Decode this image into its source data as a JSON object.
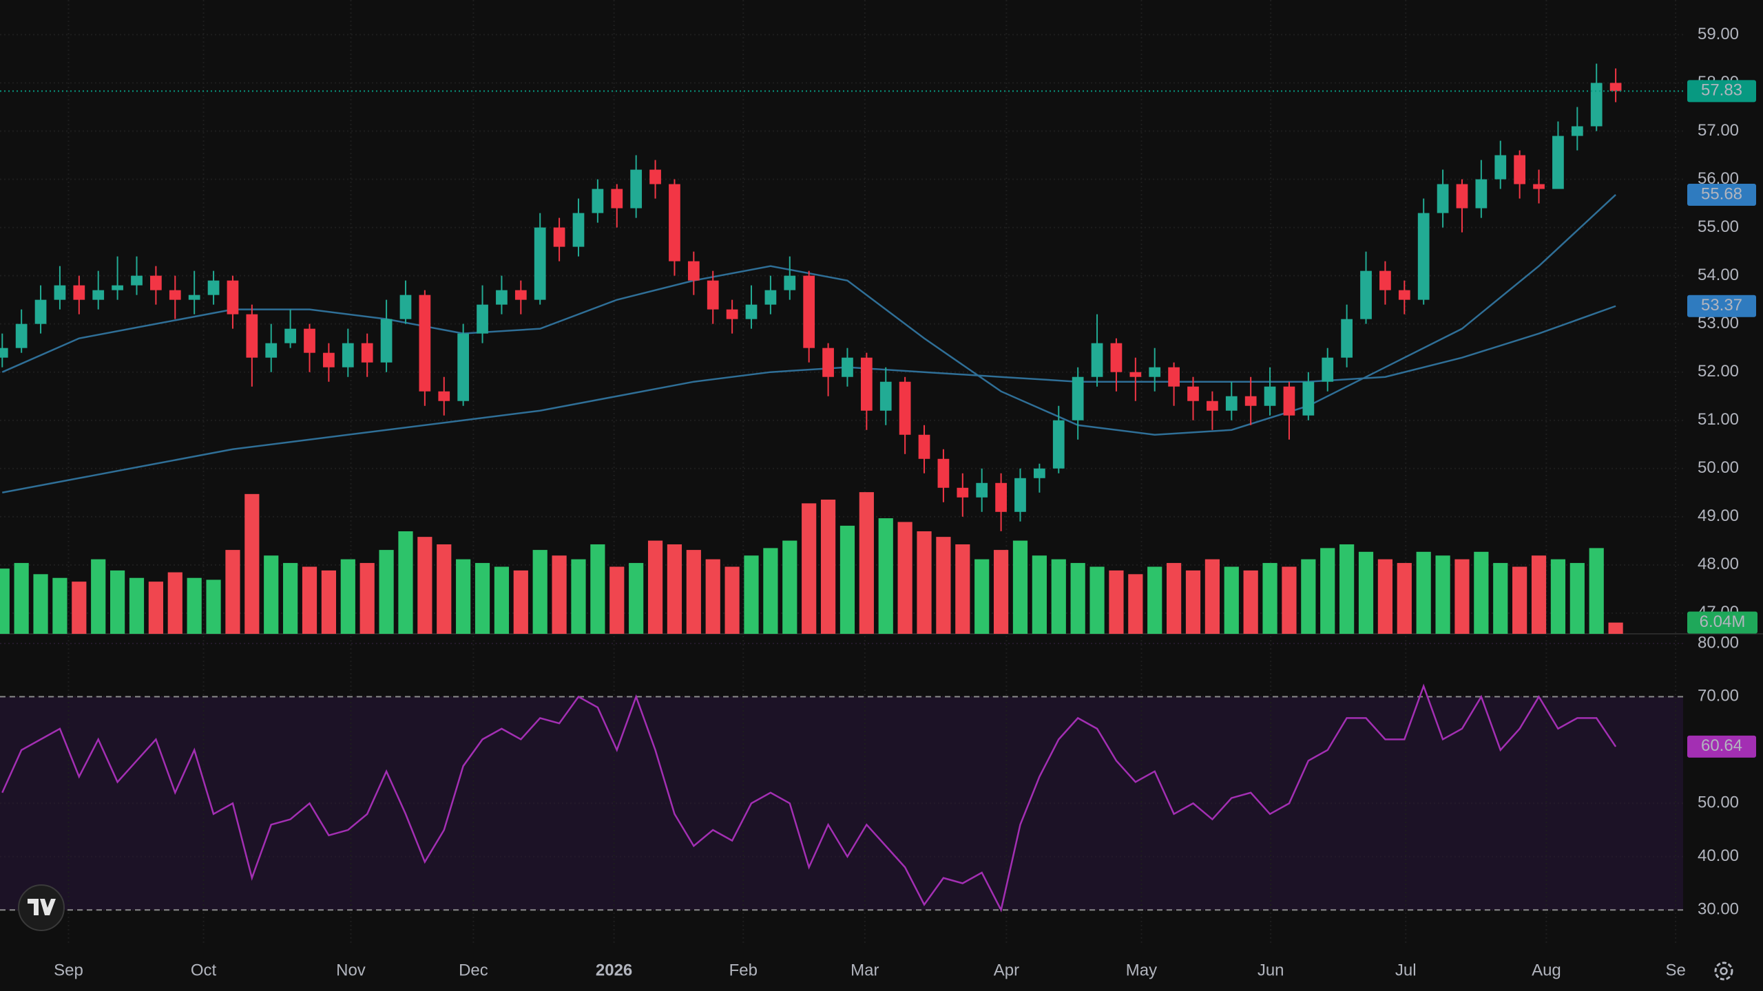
{
  "chart_data": {
    "type": "candlestick",
    "xlim": [
      -0.117,
      87.51
    ],
    "xticks": [
      {
        "value": 3.45,
        "label": "Sep"
      },
      {
        "value": 10.48,
        "label": "Oct"
      },
      {
        "value": 18.15,
        "label": "Nov"
      },
      {
        "value": 24.53,
        "label": "Dec"
      },
      {
        "value": 31.85,
        "label": "2026"
      },
      {
        "value": 38.58,
        "label": "Feb"
      },
      {
        "value": 44.91,
        "label": "Mar"
      },
      {
        "value": 52.28,
        "label": "Apr"
      },
      {
        "value": 59.31,
        "label": "May"
      },
      {
        "value": 66.04,
        "label": "Jun"
      },
      {
        "value": 73.07,
        "label": "Jul"
      },
      {
        "value": 80.39,
        "label": "Aug"
      },
      {
        "value": 87.12,
        "label": "Se"
      }
    ],
    "ylim": [
      46.57,
      59.72
    ],
    "yticks": [
      {
        "value": 47,
        "label": "47.00"
      },
      {
        "value": 48,
        "label": "48.00"
      },
      {
        "value": 49,
        "label": "49.00"
      },
      {
        "value": 50,
        "label": "50.00"
      },
      {
        "value": 51,
        "label": "51.00"
      },
      {
        "value": 52,
        "label": "52.00"
      },
      {
        "value": 53,
        "label": "53.00"
      },
      {
        "value": 54,
        "label": "54.00"
      },
      {
        "value": 55,
        "label": "55.00"
      },
      {
        "value": 56,
        "label": "56.00"
      },
      {
        "value": 57,
        "label": "57.00"
      },
      {
        "value": 58,
        "label": "58.00"
      },
      {
        "value": 59,
        "label": "59.00"
      }
    ],
    "grid": true,
    "up_color": "#22ab94",
    "down_color": "#f23645",
    "open": [
      52.3,
      52.5,
      53.0,
      53.5,
      53.8,
      53.5,
      53.7,
      53.8,
      54.0,
      53.7,
      53.5,
      53.6,
      53.9,
      53.2,
      52.3,
      52.6,
      52.9,
      52.4,
      52.1,
      52.6,
      52.2,
      53.1,
      53.6,
      51.6,
      51.4,
      52.8,
      53.4,
      53.7,
      53.5,
      55.0,
      54.6,
      55.3,
      55.8,
      55.4,
      56.2,
      55.9,
      54.3,
      53.9,
      53.3,
      53.1,
      53.4,
      53.7,
      54.0,
      52.5,
      51.9,
      52.3,
      51.2,
      51.8,
      50.7,
      50.2,
      49.6,
      49.4,
      49.7,
      49.1,
      49.8,
      50.0,
      51.0,
      51.9,
      52.6,
      52.0,
      51.9,
      52.1,
      51.7,
      51.4,
      51.2,
      51.5,
      51.3,
      51.7,
      51.1,
      51.8,
      52.3,
      53.1,
      54.1,
      53.7,
      53.5,
      55.3,
      55.9,
      55.4,
      56.0,
      56.5,
      55.9,
      55.8,
      56.9,
      57.1,
      58.0
    ],
    "high": [
      52.8,
      53.3,
      53.8,
      54.2,
      54.0,
      54.1,
      54.4,
      54.4,
      54.2,
      54.0,
      54.1,
      54.1,
      54.0,
      53.4,
      53.0,
      53.3,
      53.0,
      52.6,
      52.9,
      52.8,
      53.5,
      53.9,
      53.7,
      51.9,
      53.0,
      53.8,
      54.0,
      53.9,
      55.3,
      55.2,
      55.6,
      56.0,
      55.9,
      56.5,
      56.4,
      56.0,
      54.5,
      54.1,
      53.5,
      53.8,
      54.0,
      54.4,
      54.1,
      52.6,
      52.5,
      52.4,
      52.1,
      51.9,
      50.9,
      50.4,
      49.9,
      50.0,
      49.9,
      50.0,
      50.1,
      51.3,
      52.1,
      53.2,
      52.7,
      52.3,
      52.5,
      52.2,
      51.9,
      51.6,
      51.8,
      51.9,
      52.1,
      51.8,
      52.0,
      52.5,
      53.4,
      54.5,
      54.3,
      53.9,
      55.6,
      56.2,
      56.0,
      56.4,
      56.8,
      56.6,
      56.2,
      57.2,
      57.5,
      58.4,
      58.3
    ],
    "low": [
      52.1,
      52.4,
      52.8,
      53.3,
      53.2,
      53.3,
      53.5,
      53.6,
      53.4,
      53.1,
      53.2,
      53.4,
      52.9,
      51.7,
      52.0,
      52.5,
      52.0,
      51.8,
      51.9,
      51.9,
      52.0,
      53.0,
      51.3,
      51.1,
      51.3,
      52.6,
      53.2,
      53.2,
      53.4,
      54.3,
      54.4,
      55.1,
      55.0,
      55.2,
      55.6,
      54.0,
      53.6,
      53.0,
      52.8,
      52.9,
      53.2,
      53.5,
      52.2,
      51.5,
      51.7,
      50.8,
      50.9,
      50.3,
      49.9,
      49.3,
      49.0,
      49.1,
      48.7,
      48.9,
      49.5,
      49.9,
      50.6,
      51.7,
      51.6,
      51.4,
      51.6,
      51.3,
      51.0,
      50.8,
      51.0,
      50.9,
      51.1,
      50.6,
      51.0,
      51.6,
      52.1,
      53.0,
      53.4,
      53.2,
      53.4,
      55.0,
      54.9,
      55.2,
      55.8,
      55.6,
      55.5,
      55.8,
      56.6,
      57.0,
      57.6
    ],
    "close": [
      52.5,
      53.0,
      53.5,
      53.8,
      53.5,
      53.7,
      53.8,
      54.0,
      53.7,
      53.5,
      53.6,
      53.9,
      53.2,
      52.3,
      52.6,
      52.9,
      52.4,
      52.1,
      52.6,
      52.2,
      53.1,
      53.6,
      51.6,
      51.4,
      52.8,
      53.4,
      53.7,
      53.5,
      55.0,
      54.6,
      55.3,
      55.8,
      55.4,
      56.2,
      55.9,
      54.3,
      53.9,
      53.3,
      53.1,
      53.4,
      53.7,
      54.0,
      52.5,
      51.9,
      52.3,
      51.2,
      51.8,
      50.7,
      50.2,
      49.6,
      49.4,
      49.7,
      49.1,
      49.8,
      50.0,
      51.0,
      51.9,
      52.6,
      52.0,
      51.9,
      52.1,
      51.7,
      51.4,
      51.2,
      51.5,
      51.3,
      51.7,
      51.1,
      51.8,
      52.3,
      53.1,
      54.1,
      53.7,
      53.5,
      55.3,
      55.9,
      55.4,
      56.0,
      56.5,
      55.9,
      55.8,
      56.9,
      57.1,
      58.0,
      57.83
    ],
    "last_price_color": "#089981",
    "lines": [
      {
        "color": "#2f6f97",
        "label_color": "#2f7bbf",
        "x": [
          0,
          4,
          8,
          12,
          16,
          20,
          24,
          28,
          32,
          36,
          40,
          44,
          48,
          52,
          56,
          60,
          64,
          68,
          72,
          76,
          80,
          84
        ],
        "values": [
          52.0,
          52.7,
          53.0,
          53.3,
          53.3,
          53.1,
          52.8,
          52.9,
          53.5,
          53.9,
          54.2,
          53.9,
          52.7,
          51.6,
          50.9,
          50.7,
          50.8,
          51.3,
          52.1,
          52.9,
          54.2,
          55.68
        ]
      },
      {
        "color": "#2f6f97",
        "label_color": "#2f7bbf",
        "x": [
          0,
          4,
          8,
          12,
          16,
          20,
          24,
          28,
          32,
          36,
          40,
          44,
          48,
          52,
          56,
          60,
          64,
          68,
          72,
          76,
          80,
          84
        ],
        "values": [
          49.5,
          49.8,
          50.1,
          50.4,
          50.6,
          50.8,
          51.0,
          51.2,
          51.5,
          51.8,
          52.0,
          52.1,
          52.0,
          51.9,
          51.8,
          51.8,
          51.8,
          51.8,
          51.9,
          52.3,
          52.8,
          53.37
        ]
      }
    ],
    "volume": {
      "lim": [
        0,
        340
      ],
      "up_color": "#2dc36a",
      "down_color": "#f0464f",
      "label_color": "#1fa85a",
      "last_value_label": "6.04M",
      "values": [
        35,
        38,
        32,
        30,
        28,
        40,
        34,
        30,
        28,
        33,
        30,
        29,
        45,
        75,
        42,
        38,
        36,
        34,
        40,
        38,
        45,
        55,
        52,
        48,
        40,
        38,
        36,
        34,
        45,
        42,
        40,
        48,
        36,
        38,
        50,
        48,
        45,
        40,
        36,
        42,
        46,
        50,
        70,
        72,
        58,
        76,
        62,
        60,
        55,
        52,
        48,
        40,
        45,
        50,
        42,
        40,
        38,
        36,
        34,
        32,
        36,
        38,
        34,
        40,
        36,
        34,
        38,
        36,
        40,
        46,
        48,
        44,
        40,
        38,
        44,
        42,
        40,
        44,
        38,
        36,
        42,
        40,
        38,
        46,
        6.04
      ]
    },
    "rsi": {
      "color": "#a32fb3",
      "band": [
        30,
        70
      ],
      "band_color": "#1c1226",
      "ylim": [
        23.7,
        81.8
      ],
      "yticks": [
        {
          "value": 30,
          "label": "30.00"
        },
        {
          "value": 40,
          "label": "40.00"
        },
        {
          "value": 50,
          "label": "50.00"
        },
        {
          "value": 70,
          "label": "70.00"
        },
        {
          "value": 80,
          "label": "80.00"
        }
      ],
      "values": [
        52,
        60,
        62,
        64,
        55,
        62,
        54,
        58,
        62,
        52,
        60,
        48,
        50,
        36,
        46,
        47,
        50,
        44,
        45,
        48,
        56,
        48,
        39,
        45,
        57,
        62,
        64,
        62,
        66,
        65,
        70,
        68,
        60,
        70,
        60,
        48,
        42,
        45,
        43,
        50,
        52,
        50,
        38,
        46,
        40,
        46,
        42,
        38,
        31,
        36,
        35,
        37,
        30,
        46,
        55,
        62,
        66,
        64,
        58,
        54,
        56,
        48,
        50,
        47,
        51,
        52,
        48,
        50,
        58,
        60,
        66,
        66,
        62,
        62,
        72,
        62,
        64,
        70,
        60,
        64,
        70,
        64,
        66,
        66,
        60.64
      ]
    }
  }
}
